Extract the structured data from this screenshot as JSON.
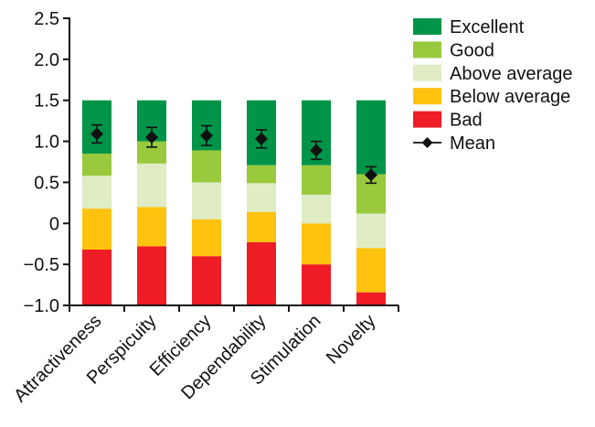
{
  "chart_data": {
    "type": "bar",
    "stacked": true,
    "categories": [
      "Attractiveness",
      "Perspicuity",
      "Efficiency",
      "Dependability",
      "Stimulation",
      "Novelty"
    ],
    "ylim": [
      -1.0,
      2.5
    ],
    "yticks": [
      {
        "value": 2.5,
        "label": "2.5"
      },
      {
        "value": 2.0,
        "label": "2.0"
      },
      {
        "value": 1.5,
        "label": "1.5"
      },
      {
        "value": 1.0,
        "label": "1.0"
      },
      {
        "value": 0.5,
        "label": "0.5"
      },
      {
        "value": 0,
        "label": "0"
      },
      {
        "value": -0.5,
        "label": "−0.5"
      },
      {
        "value": -1.0,
        "label": "−1.0"
      }
    ],
    "series": [
      {
        "name": "Bad",
        "color": "#ee1c25",
        "values": [
          0.68,
          0.72,
          0.6,
          0.77,
          0.5,
          0.16
        ]
      },
      {
        "name": "Below average",
        "color": "#fec20f",
        "values": [
          0.5,
          0.48,
          0.45,
          0.37,
          0.5,
          0.54
        ]
      },
      {
        "name": "Above average",
        "color": "#dfecc4",
        "values": [
          0.4,
          0.53,
          0.45,
          0.35,
          0.35,
          0.42
        ]
      },
      {
        "name": "Good",
        "color": "#99c93c",
        "values": [
          0.27,
          0.27,
          0.39,
          0.22,
          0.36,
          0.48
        ]
      },
      {
        "name": "Excellent",
        "color": "#009449",
        "values": [
          0.65,
          0.5,
          0.61,
          0.79,
          0.79,
          0.9
        ]
      }
    ],
    "mean": {
      "name": "Mean",
      "values": [
        1.09,
        1.05,
        1.07,
        1.03,
        0.89,
        0.59
      ],
      "errors": [
        0.11,
        0.12,
        0.12,
        0.11,
        0.11,
        0.1
      ]
    },
    "legend": [
      "Excellent",
      "Good",
      "Above average",
      "Below average",
      "Bad",
      "Mean"
    ],
    "legend_position": "top-right",
    "title": "",
    "xlabel": "",
    "ylabel": "",
    "grid": false
  }
}
